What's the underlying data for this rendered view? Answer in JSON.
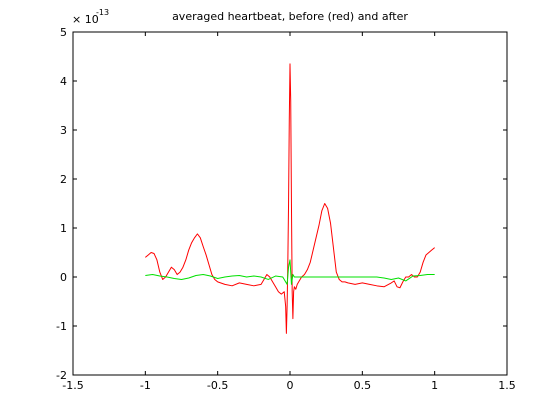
{
  "chart_data": {
    "type": "line",
    "title": "averaged heartbeat, before (red) and after",
    "xlabel": "",
    "ylabel": "",
    "y_multiplier_label": "× 10",
    "y_multiplier_exponent": "-13",
    "xlim": [
      -1.5,
      1.5
    ],
    "ylim": [
      -2,
      5
    ],
    "x_ticks": [
      -1.5,
      -1,
      -0.5,
      0,
      0.5,
      1,
      1.5
    ],
    "x_tick_labels": [
      "-1.5",
      "-1",
      "-0.5",
      "0",
      "0.5",
      "1",
      "1.5"
    ],
    "y_ticks": [
      -2,
      -1,
      0,
      1,
      2,
      3,
      4,
      5
    ],
    "y_tick_labels": [
      "-2",
      "-1",
      "0",
      "1",
      "2",
      "3",
      "4",
      "5"
    ],
    "grid": false,
    "series": [
      {
        "color": "#ff0000",
        "x": [
          -1.0,
          -0.98,
          -0.96,
          -0.94,
          -0.92,
          -0.9,
          -0.88,
          -0.86,
          -0.84,
          -0.82,
          -0.8,
          -0.78,
          -0.76,
          -0.74,
          -0.72,
          -0.7,
          -0.68,
          -0.66,
          -0.64,
          -0.62,
          -0.6,
          -0.58,
          -0.56,
          -0.54,
          -0.52,
          -0.5,
          -0.45,
          -0.4,
          -0.35,
          -0.3,
          -0.25,
          -0.2,
          -0.18,
          -0.16,
          -0.14,
          -0.12,
          -0.1,
          -0.08,
          -0.06,
          -0.04,
          -0.03,
          -0.025,
          -0.02,
          -0.015,
          -0.01,
          -0.005,
          0.0,
          0.005,
          0.01,
          0.015,
          0.02,
          0.025,
          0.03,
          0.04,
          0.05,
          0.06,
          0.08,
          0.1,
          0.12,
          0.14,
          0.16,
          0.18,
          0.2,
          0.22,
          0.24,
          0.26,
          0.28,
          0.3,
          0.32,
          0.34,
          0.36,
          0.38,
          0.4,
          0.45,
          0.5,
          0.55,
          0.6,
          0.65,
          0.7,
          0.72,
          0.74,
          0.76,
          0.78,
          0.8,
          0.82,
          0.84,
          0.86,
          0.88,
          0.9,
          0.92,
          0.94,
          0.96,
          0.98,
          1.0
        ],
        "y": [
          0.4,
          0.45,
          0.5,
          0.48,
          0.35,
          0.1,
          -0.05,
          0.0,
          0.1,
          0.2,
          0.15,
          0.05,
          0.1,
          0.2,
          0.35,
          0.55,
          0.7,
          0.8,
          0.88,
          0.8,
          0.62,
          0.45,
          0.25,
          0.05,
          -0.05,
          -0.1,
          -0.15,
          -0.18,
          -0.12,
          -0.15,
          -0.18,
          -0.15,
          -0.05,
          0.05,
          0.0,
          -0.1,
          -0.2,
          -0.3,
          -0.35,
          -0.3,
          -0.6,
          -1.15,
          -0.6,
          0.3,
          1.5,
          3.2,
          4.35,
          3.6,
          1.5,
          -0.3,
          -0.85,
          -0.3,
          -0.2,
          -0.25,
          -0.15,
          -0.1,
          0.0,
          0.05,
          0.15,
          0.3,
          0.55,
          0.8,
          1.05,
          1.35,
          1.5,
          1.4,
          1.1,
          0.6,
          0.1,
          -0.05,
          -0.1,
          -0.1,
          -0.12,
          -0.15,
          -0.12,
          -0.15,
          -0.18,
          -0.2,
          -0.12,
          -0.08,
          -0.2,
          -0.22,
          -0.1,
          0.0,
          0.0,
          0.05,
          0.0,
          0.0,
          0.1,
          0.3,
          0.45,
          0.5,
          0.55,
          0.6
        ]
      },
      {
        "color": "#00e000",
        "x": [
          -1.0,
          -0.95,
          -0.9,
          -0.85,
          -0.8,
          -0.75,
          -0.7,
          -0.65,
          -0.6,
          -0.55,
          -0.5,
          -0.45,
          -0.4,
          -0.35,
          -0.3,
          -0.25,
          -0.2,
          -0.15,
          -0.1,
          -0.05,
          -0.02,
          -0.01,
          0.0,
          0.005,
          0.01,
          0.02,
          0.03,
          0.05,
          0.1,
          0.2,
          0.3,
          0.4,
          0.5,
          0.55,
          0.6,
          0.65,
          0.7,
          0.75,
          0.8,
          0.85,
          0.9,
          0.95,
          1.0
        ],
        "y": [
          0.03,
          0.05,
          0.02,
          0.0,
          -0.03,
          -0.05,
          -0.02,
          0.03,
          0.05,
          0.02,
          -0.03,
          0.0,
          0.02,
          0.03,
          0.0,
          0.02,
          0.0,
          -0.05,
          0.02,
          0.0,
          -0.15,
          0.2,
          0.35,
          0.1,
          -0.15,
          0.05,
          0.0,
          0.0,
          0.0,
          0.0,
          0.0,
          0.0,
          0.0,
          0.0,
          0.0,
          -0.02,
          -0.05,
          -0.02,
          -0.08,
          0.02,
          0.03,
          0.05,
          0.05
        ]
      }
    ]
  }
}
